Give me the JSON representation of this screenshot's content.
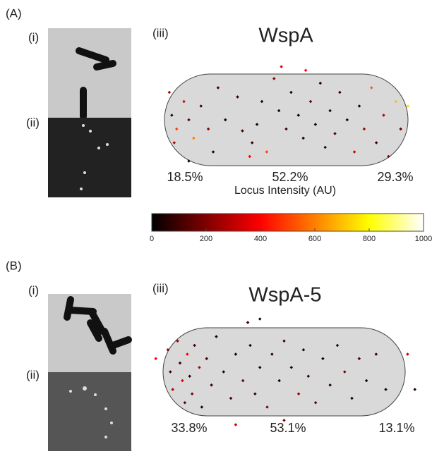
{
  "panels": [
    {
      "label": "(A)",
      "sub_i": "(i)",
      "sub_ii": "(ii)",
      "sub_iii": "(iii)",
      "title": "WspA",
      "percents": [
        "18.5%",
        "52.2%",
        "29.3%"
      ],
      "points": [
        [
          0.02,
          0.2,
          250
        ],
        [
          0.03,
          0.45,
          80
        ],
        [
          0.05,
          0.6,
          500
        ],
        [
          0.04,
          0.75,
          300
        ],
        [
          0.08,
          0.3,
          350
        ],
        [
          0.1,
          0.5,
          150
        ],
        [
          0.12,
          0.7,
          600
        ],
        [
          0.15,
          0.35,
          90
        ],
        [
          0.18,
          0.6,
          200
        ],
        [
          0.2,
          0.85,
          60
        ],
        [
          0.22,
          0.15,
          120
        ],
        [
          0.25,
          0.5,
          30
        ],
        [
          0.3,
          0.25,
          70
        ],
        [
          0.32,
          0.62,
          110
        ],
        [
          0.35,
          0.9,
          400
        ],
        [
          0.36,
          0.75,
          80
        ],
        [
          0.38,
          0.55,
          40
        ],
        [
          0.4,
          0.3,
          60
        ],
        [
          0.42,
          0.85,
          500
        ],
        [
          0.45,
          0.05,
          200
        ],
        [
          0.47,
          0.4,
          30
        ],
        [
          0.5,
          0.6,
          100
        ],
        [
          0.52,
          0.2,
          50
        ],
        [
          0.55,
          0.45,
          20
        ],
        [
          0.57,
          0.7,
          70
        ],
        [
          0.6,
          0.3,
          150
        ],
        [
          0.62,
          0.55,
          40
        ],
        [
          0.64,
          0.1,
          60
        ],
        [
          0.66,
          0.8,
          90
        ],
        [
          0.68,
          0.4,
          30
        ],
        [
          0.7,
          0.65,
          120
        ],
        [
          0.72,
          0.2,
          80
        ],
        [
          0.75,
          0.5,
          60
        ],
        [
          0.78,
          0.85,
          300
        ],
        [
          0.8,
          0.35,
          40
        ],
        [
          0.82,
          0.6,
          250
        ],
        [
          0.85,
          0.15,
          550
        ],
        [
          0.87,
          0.75,
          100
        ],
        [
          0.9,
          0.45,
          300
        ],
        [
          0.92,
          0.9,
          200
        ],
        [
          0.95,
          0.3,
          700
        ],
        [
          0.97,
          0.6,
          150
        ],
        [
          1.0,
          0.35,
          750
        ],
        [
          0.48,
          -0.08,
          350
        ],
        [
          0.58,
          -0.04,
          400
        ],
        [
          0.1,
          0.95,
          40
        ]
      ]
    },
    {
      "label": "(B)",
      "sub_i": "(i)",
      "sub_ii": "(ii)",
      "sub_iii": "(iii)",
      "title": "WspA-5",
      "percents": [
        "33.8%",
        "53.1%",
        "13.1%"
      ],
      "points": [
        [
          -0.03,
          0.35,
          400
        ],
        [
          0.02,
          0.25,
          200
        ],
        [
          0.03,
          0.5,
          100
        ],
        [
          0.04,
          0.7,
          300
        ],
        [
          0.06,
          0.15,
          250
        ],
        [
          0.07,
          0.4,
          80
        ],
        [
          0.08,
          0.6,
          350
        ],
        [
          0.09,
          0.85,
          150
        ],
        [
          0.1,
          0.3,
          400
        ],
        [
          0.11,
          0.55,
          60
        ],
        [
          0.12,
          0.75,
          200
        ],
        [
          0.13,
          0.2,
          100
        ],
        [
          0.15,
          0.45,
          300
        ],
        [
          0.16,
          0.9,
          50
        ],
        [
          0.18,
          0.35,
          120
        ],
        [
          0.2,
          0.65,
          80
        ],
        [
          0.22,
          0.1,
          40
        ],
        [
          0.25,
          0.5,
          60
        ],
        [
          0.28,
          0.8,
          100
        ],
        [
          0.3,
          0.3,
          30
        ],
        [
          0.33,
          0.6,
          150
        ],
        [
          0.36,
          0.2,
          50
        ],
        [
          0.38,
          0.75,
          90
        ],
        [
          0.4,
          0.45,
          40
        ],
        [
          0.43,
          0.9,
          200
        ],
        [
          0.45,
          0.3,
          70
        ],
        [
          0.48,
          0.6,
          30
        ],
        [
          0.5,
          0.15,
          100
        ],
        [
          0.53,
          0.45,
          60
        ],
        [
          0.56,
          0.75,
          250
        ],
        [
          0.58,
          0.25,
          40
        ],
        [
          0.6,
          0.55,
          80
        ],
        [
          0.63,
          0.85,
          150
        ],
        [
          0.66,
          0.35,
          30
        ],
        [
          0.69,
          0.65,
          60
        ],
        [
          0.72,
          0.2,
          90
        ],
        [
          0.75,
          0.5,
          200
        ],
        [
          0.78,
          0.8,
          40
        ],
        [
          0.81,
          0.35,
          120
        ],
        [
          0.84,
          0.6,
          60
        ],
        [
          0.88,
          0.3,
          80
        ],
        [
          0.92,
          0.7,
          50
        ],
        [
          1.01,
          0.3,
          300
        ],
        [
          0.35,
          -0.06,
          80
        ],
        [
          0.4,
          -0.1,
          60
        ],
        [
          0.3,
          1.1,
          300
        ],
        [
          0.5,
          1.05,
          200
        ],
        [
          1.04,
          0.7,
          60
        ]
      ]
    }
  ],
  "colorbar": {
    "label": "Locus Intensity (AU)",
    "lim": [
      0,
      1000
    ],
    "ticks": [
      0,
      200,
      400,
      600,
      800,
      1000
    ]
  }
}
